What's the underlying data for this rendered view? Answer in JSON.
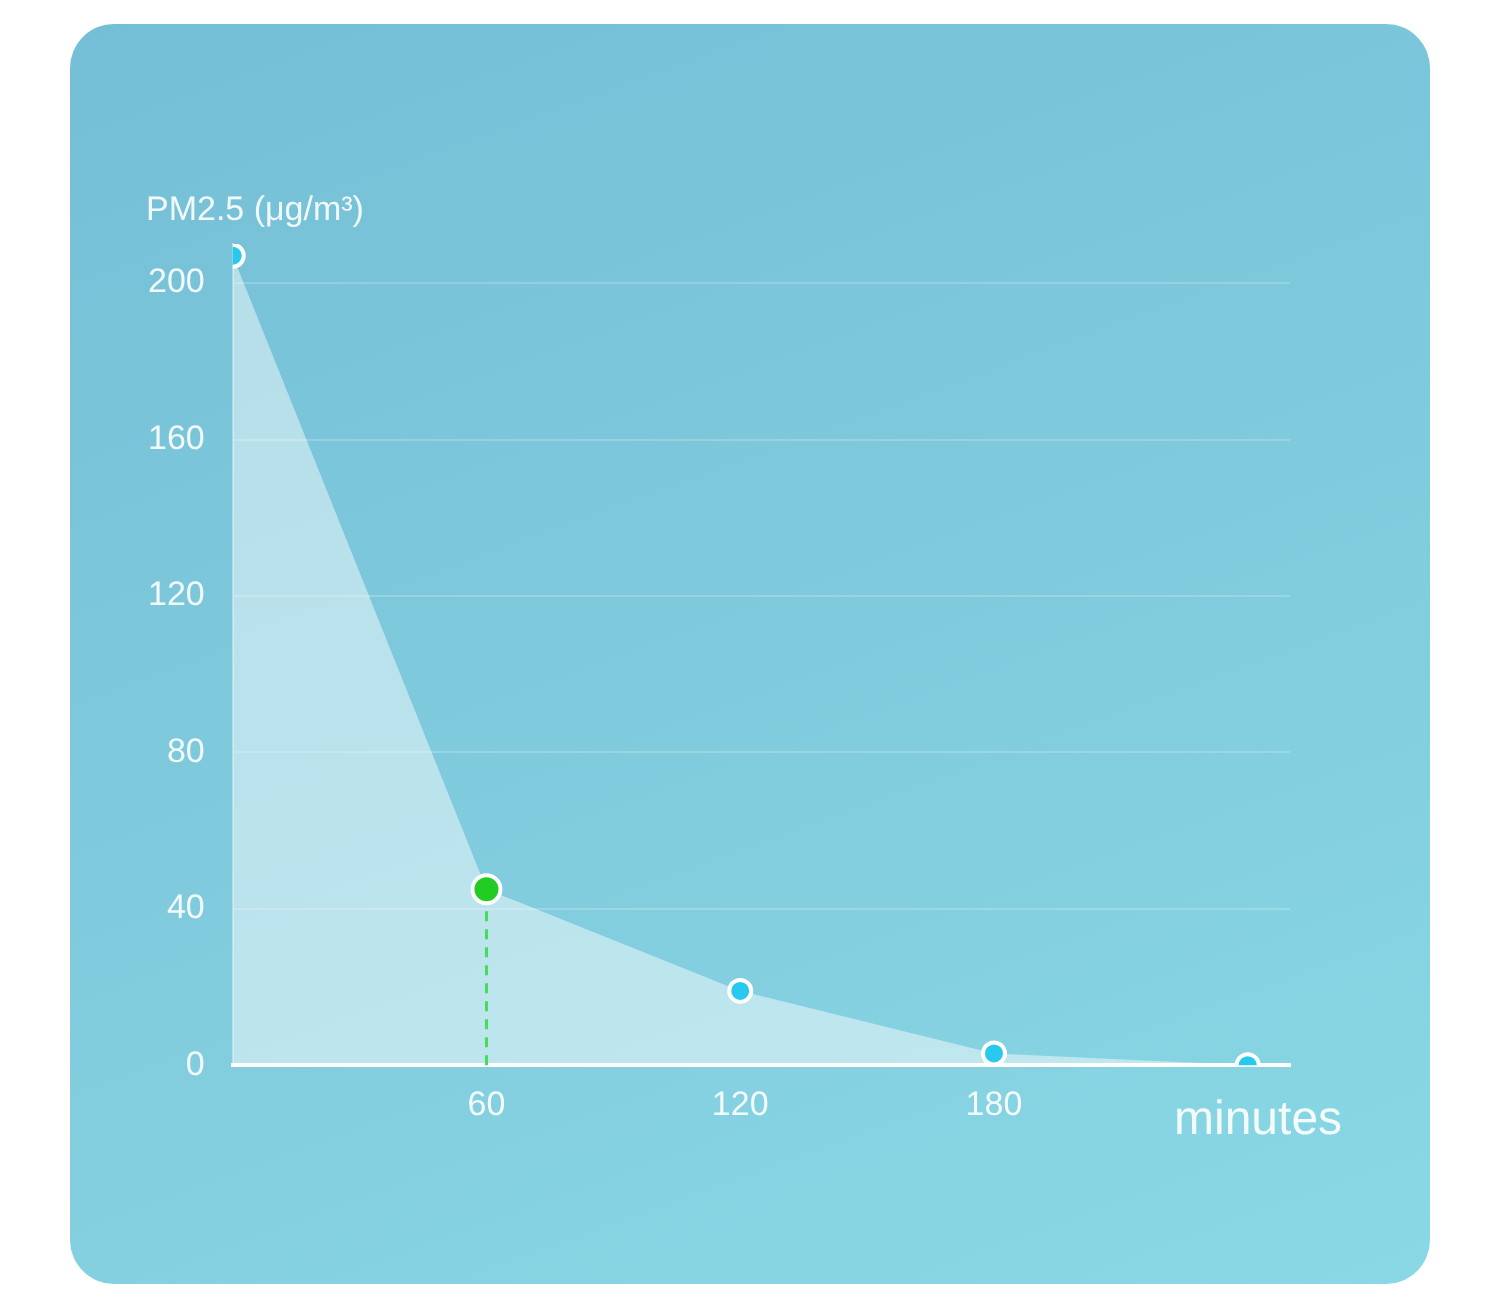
{
  "chart_data": {
    "type": "area",
    "ylabel": "PM2.5 (μg/m³)",
    "xlabel": "minutes",
    "x": [
      0,
      60,
      120,
      180,
      240
    ],
    "series": [
      {
        "color": "#ffffff",
        "values": [
          207,
          45,
          19,
          3,
          0
        ],
        "colors": [
          "#29c8ee",
          "#22cc22",
          "#29c8ee",
          "#29c8ee",
          "#29c8ee"
        ]
      }
    ],
    "xlim": [
      0,
      250
    ],
    "xticks": [
      60,
      120,
      180
    ],
    "ylim": [
      0,
      210
    ],
    "yticks": [
      0,
      40,
      80,
      120,
      160,
      200
    ],
    "grid": "y",
    "legend": false,
    "marker": "circle",
    "ref_lines": [
      {
        "axis": "x",
        "value": 60,
        "color": "#44dd55",
        "line_style": "dashed"
      }
    ]
  }
}
